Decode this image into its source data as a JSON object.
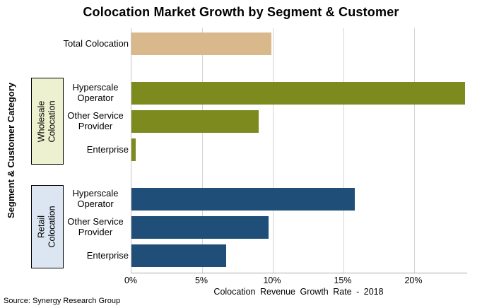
{
  "chart_data": {
    "type": "bar",
    "orientation": "horizontal",
    "title": "Colocation Market Growth by Segment & Customer",
    "xlabel": "Colocation Revenue Growth Rate - 2018",
    "ylabel": "Segment & Customer Category",
    "x_ticks": [
      "0%",
      "5%",
      "10%",
      "15%",
      "20%"
    ],
    "x_tick_values": [
      0,
      5,
      10,
      15,
      20
    ],
    "xlim": [
      0,
      23.75
    ],
    "grid": "vertical",
    "groups": [
      {
        "name": "",
        "color": "#d9b88c",
        "box_color": "",
        "bars": [
          {
            "label": "Total Colocation",
            "value": 9.9
          }
        ]
      },
      {
        "name": "Wholesale Colocation",
        "color": "#7c8a1e",
        "box_color": "#edf1cf",
        "bars": [
          {
            "label": "Hyperscale Operator",
            "value": 23.6
          },
          {
            "label": "Other Service Provider",
            "value": 9.0
          },
          {
            "label": "Enterprise",
            "value": 0.3
          }
        ]
      },
      {
        "name": "Retail Colocation",
        "color": "#1f4e79",
        "box_color": "#dce6f2",
        "bars": [
          {
            "label": "Hyperscale Operator",
            "value": 15.8
          },
          {
            "label": "Other Service Provider",
            "value": 9.7
          },
          {
            "label": "Enterprise",
            "value": 6.7
          }
        ]
      }
    ],
    "source": "Source: Synergy Research Group"
  }
}
